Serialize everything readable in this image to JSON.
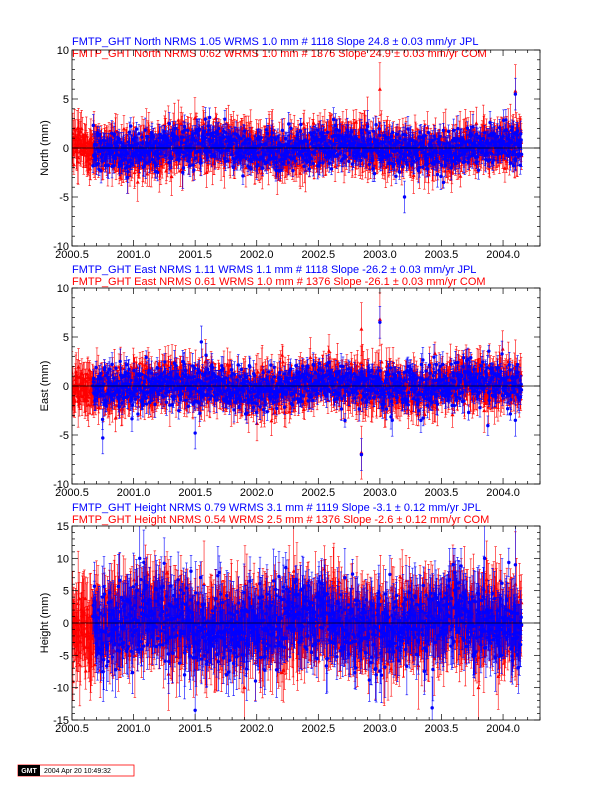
{
  "chart_data": [
    {
      "type": "scatter",
      "title_lines": [
        {
          "text": "FMTP_GHT North NRMS 1.05 WRMS  1.0 mm # 1118 Slope   24.8 ±  0.03 mm/yr JPL",
          "color": "#0000ff"
        },
        {
          "text": "FMTP_GHT North NRMS 0.62 WRMS  1.0 mm # 1376 Slope   24.9 ±  0.03 mm/yr COM",
          "color": "#ff0000"
        }
      ],
      "ylabel": "North (mm)",
      "xlim": [
        2000.5,
        2004.3
      ],
      "ylim": [
        -10,
        10
      ],
      "x_ticks": [
        "2000.5",
        "2001.0",
        "2001.5",
        "2002.0",
        "2002.5",
        "2003.0",
        "2003.5",
        "2004.0"
      ],
      "y_ticks": [
        "-10",
        "-5",
        "0",
        "5",
        "10"
      ],
      "zero_line": true,
      "series": [
        {
          "label": "JPL",
          "color": "#0000ff",
          "marker": "circle",
          "x_start": 2000.67,
          "x_end": 2004.15,
          "count": 1118,
          "y_scatter": 1.0,
          "err": 0.9,
          "outliers": [
            [
              2002.9,
              2.2
            ],
            [
              2003.2,
              -5.0
            ],
            [
              2004.1,
              5.5
            ],
            [
              2001.1,
              -1.5
            ],
            [
              2000.95,
              -3.0
            ],
            [
              2001.4,
              -2.5
            ]
          ]
        },
        {
          "label": "COM",
          "color": "#ff0000",
          "marker": "triangle",
          "x_start": 2000.5,
          "x_end": 2004.15,
          "count": 1376,
          "y_scatter": 1.0,
          "err": 1.5,
          "outliers": [
            [
              2003.0,
              6.0
            ],
            [
              2002.1,
              1.0
            ],
            [
              2004.1,
              5.8
            ],
            [
              2002.9,
              2.5
            ],
            [
              2000.55,
              -1.0
            ]
          ]
        }
      ]
    },
    {
      "type": "scatter",
      "title_lines": [
        {
          "text": "FMTP_GHT East NRMS 1.11 WRMS  1.1 mm # 1118 Slope  -26.2 ±  0.03 mm/yr JPL",
          "color": "#0000ff"
        },
        {
          "text": "FMTP_GHT East NRMS 0.61 WRMS  1.0 mm # 1376 Slope  -26.1 ±  0.03 mm/yr COM",
          "color": "#ff0000"
        }
      ],
      "ylabel": "East (mm)",
      "xlim": [
        2000.5,
        2004.3
      ],
      "ylim": [
        -10,
        10
      ],
      "x_ticks": [
        "2000.5",
        "2001.0",
        "2001.5",
        "2002.0",
        "2002.5",
        "2003.0",
        "2003.5",
        "2004.0"
      ],
      "y_ticks": [
        "-10",
        "-5",
        "0",
        "5",
        "10"
      ],
      "zero_line": true,
      "series": [
        {
          "label": "JPL",
          "color": "#0000ff",
          "marker": "circle",
          "x_start": 2000.67,
          "x_end": 2004.15,
          "count": 1118,
          "y_scatter": 1.1,
          "err": 0.9,
          "outliers": [
            [
              2003.0,
              6.5
            ],
            [
              2002.85,
              -7.0
            ],
            [
              2001.5,
              -4.8
            ],
            [
              2000.75,
              -5.3
            ],
            [
              2004.1,
              -3.5
            ],
            [
              2001.55,
              4.5
            ],
            [
              2003.1,
              -3.5
            ]
          ]
        },
        {
          "label": "COM",
          "color": "#ff0000",
          "marker": "triangle",
          "x_start": 2000.5,
          "x_end": 2004.15,
          "count": 1376,
          "y_scatter": 1.0,
          "err": 1.5,
          "outliers": [
            [
              2002.85,
              5.8
            ],
            [
              2002.85,
              -6.8
            ],
            [
              2003.0,
              6.8
            ],
            [
              2000.55,
              -1.5
            ],
            [
              2004.1,
              2.0
            ]
          ]
        }
      ]
    },
    {
      "type": "scatter",
      "title_lines": [
        {
          "text": "FMTP_GHT Height NRMS 0.79 WRMS  3.1 mm # 1119 Slope   -3.1 ±  0.12 mm/yr JPL",
          "color": "#0000ff"
        },
        {
          "text": "FMTP_GHT Height NRMS 0.54 WRMS  2.5 mm # 1376 Slope   -2.6 ±  0.12 mm/yr COM",
          "color": "#ff0000"
        }
      ],
      "ylabel": "Height (mm)",
      "xlim": [
        2000.5,
        2004.3
      ],
      "ylim": [
        -15,
        15
      ],
      "x_ticks": [
        "2000.5",
        "2001.0",
        "2001.5",
        "2002.0",
        "2002.5",
        "2003.0",
        "2003.5",
        "2004.0"
      ],
      "y_ticks": [
        "-15",
        "-10",
        "-5",
        "0",
        "5",
        "10",
        "15"
      ],
      "zero_line": true,
      "series": [
        {
          "label": "JPL",
          "color": "#0000ff",
          "marker": "circle",
          "x_start": 2000.67,
          "x_end": 2004.15,
          "count": 1119,
          "y_scatter": 3.1,
          "err": 3.5,
          "outliers": [
            [
              2001.5,
              -13.5
            ],
            [
              2001.05,
              10.0
            ],
            [
              2003.85,
              10.0
            ],
            [
              2004.1,
              9.0
            ]
          ]
        },
        {
          "label": "COM",
          "color": "#ff0000",
          "marker": "triangle",
          "x_start": 2000.5,
          "x_end": 2004.15,
          "count": 1376,
          "y_scatter": 2.5,
          "err": 4.5,
          "outliers": [
            [
              2000.55,
              3.0
            ],
            [
              2003.8,
              -10.0
            ],
            [
              2004.1,
              6.0
            ],
            [
              2002.3,
              8.0
            ],
            [
              2001.9,
              -10.0
            ]
          ]
        }
      ]
    }
  ],
  "footer": {
    "logo": "GMT",
    "timestamp": "2004 Apr 20 10:49:32"
  }
}
